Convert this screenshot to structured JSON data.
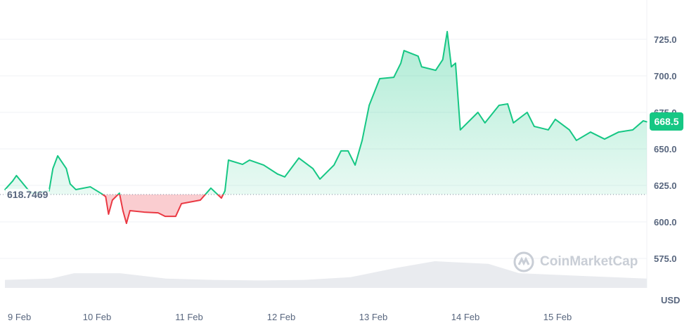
{
  "chart_data": {
    "type": "line",
    "currency": "USD",
    "baseline": 618.7469,
    "baseline_label": "618.7469",
    "current_price": "668.5",
    "y_ticks": [
      "725.0",
      "700.0",
      "675.0",
      "650.0",
      "625.0",
      "600.0",
      "575.0"
    ],
    "ylim": [
      555,
      740
    ],
    "x_ticks": [
      "9 Feb",
      "10 Feb",
      "11 Feb",
      "12 Feb",
      "13 Feb",
      "14 Feb",
      "15 Feb"
    ],
    "grid": true,
    "colors": {
      "up": "#16c784",
      "down": "#ea3943",
      "volume": "#e9ebef"
    },
    "watermark": "CoinMarketCap",
    "series": [
      [
        "9 Feb 00:00",
        622.1
      ],
      [
        "9 Feb 02:00",
        627.9
      ],
      [
        "9 Feb 03:00",
        631.7
      ],
      [
        "9 Feb 06:00",
        622.1
      ],
      [
        "9 Feb 07:00",
        619.7
      ],
      [
        "9 Feb 11:30",
        621.2
      ],
      [
        "9 Feb 12:30",
        636.5
      ],
      [
        "9 Feb 13:45",
        645.2
      ],
      [
        "9 Feb 16:00",
        636.5
      ],
      [
        "9 Feb 17:00",
        626.0
      ],
      [
        "9 Feb 18:30",
        622.1
      ],
      [
        "9 Feb 22:15",
        624.0
      ],
      [
        "10 Feb 01:15",
        619.2
      ],
      [
        "10 Feb 02:15",
        617.3
      ],
      [
        "10 Feb 03:00",
        605.3
      ],
      [
        "10 Feb 04:00",
        614.9
      ],
      [
        "10 Feb 05:50",
        619.7
      ],
      [
        "10 Feb 06:45",
        607.7
      ],
      [
        "10 Feb 07:40",
        599.0
      ],
      [
        "10 Feb 08:35",
        607.7
      ],
      [
        "10 Feb 12:15",
        606.7
      ],
      [
        "10 Feb 15:55",
        606.2
      ],
      [
        "10 Feb 17:45",
        603.8
      ],
      [
        "10 Feb 20:30",
        603.8
      ],
      [
        "10 Feb 22:00",
        612.5
      ],
      [
        "11 Feb 02:55",
        614.9
      ],
      [
        "11 Feb 05:40",
        623.1
      ],
      [
        "11 Feb 08:25",
        616.3
      ],
      [
        "11 Feb 09:20",
        621.2
      ],
      [
        "11 Feb 10:15",
        642.3
      ],
      [
        "11 Feb 13:55",
        639.4
      ],
      [
        "11 Feb 15:45",
        642.3
      ],
      [
        "11 Feb 19:25",
        638.9
      ],
      [
        "11 Feb 23:05",
        632.7
      ],
      [
        "12 Feb 00:55",
        630.8
      ],
      [
        "12 Feb 04:35",
        643.7
      ],
      [
        "12 Feb 08:15",
        636.5
      ],
      [
        "12 Feb 10:05",
        629.3
      ],
      [
        "12 Feb 13:45",
        638.9
      ],
      [
        "12 Feb 15:35",
        648.6
      ],
      [
        "12 Feb 17:25",
        648.6
      ],
      [
        "12 Feb 19:15",
        638.9
      ],
      [
        "12 Feb 21:05",
        655.8
      ],
      [
        "12 Feb 22:55",
        679.8
      ],
      [
        "13 Feb 01:40",
        698.1
      ],
      [
        "13 Feb 05:20",
        699.0
      ],
      [
        "13 Feb 07:10",
        708.7
      ],
      [
        "13 Feb 08:00",
        717.3
      ],
      [
        "13 Feb 11:40",
        713.5
      ],
      [
        "13 Feb 12:35",
        706.2
      ],
      [
        "13 Feb 16:15",
        703.8
      ],
      [
        "13 Feb 18:05",
        711.1
      ],
      [
        "13 Feb 19:15",
        730.3
      ],
      [
        "13 Feb 20:20",
        706.2
      ],
      [
        "13 Feb 21:25",
        708.7
      ],
      [
        "13 Feb 22:40",
        663.0
      ],
      [
        "14 Feb 03:15",
        675.0
      ],
      [
        "14 Feb 05:05",
        667.8
      ],
      [
        "14 Feb 08:45",
        679.8
      ],
      [
        "14 Feb 11:00",
        680.8
      ],
      [
        "14 Feb 12:30",
        667.8
      ],
      [
        "14 Feb 16:05",
        675.0
      ],
      [
        "14 Feb 17:55",
        665.4
      ],
      [
        "14 Feb 21:35",
        663.0
      ],
      [
        "14 Feb 23:25",
        670.2
      ],
      [
        "15 Feb 03:05",
        663.0
      ],
      [
        "15 Feb 04:55",
        655.8
      ],
      [
        "15 Feb 08:35",
        661.5
      ],
      [
        "15 Feb 12:15",
        656.7
      ],
      [
        "15 Feb 15:55",
        661.5
      ],
      [
        "15 Feb 19:35",
        663.0
      ],
      [
        "15 Feb 22:20",
        669.2
      ],
      [
        "15 Feb 23:15",
        668.5
      ]
    ],
    "volume_relative": [
      [
        "9 Feb 00:00",
        0.3
      ],
      [
        "9 Feb 12:00",
        0.35
      ],
      [
        "9 Feb 18:00",
        0.55
      ],
      [
        "10 Feb 06:00",
        0.55
      ],
      [
        "10 Feb 18:00",
        0.35
      ],
      [
        "11 Feb 06:00",
        0.3
      ],
      [
        "11 Feb 18:00",
        0.28
      ],
      [
        "12 Feb 06:00",
        0.3
      ],
      [
        "12 Feb 18:00",
        0.4
      ],
      [
        "13 Feb 06:00",
        0.75
      ],
      [
        "13 Feb 16:00",
        1.0
      ],
      [
        "14 Feb 06:00",
        0.9
      ],
      [
        "14 Feb 14:00",
        0.55
      ],
      [
        "15 Feb 06:00",
        0.45
      ],
      [
        "15 Feb 23:15",
        0.35
      ]
    ]
  }
}
